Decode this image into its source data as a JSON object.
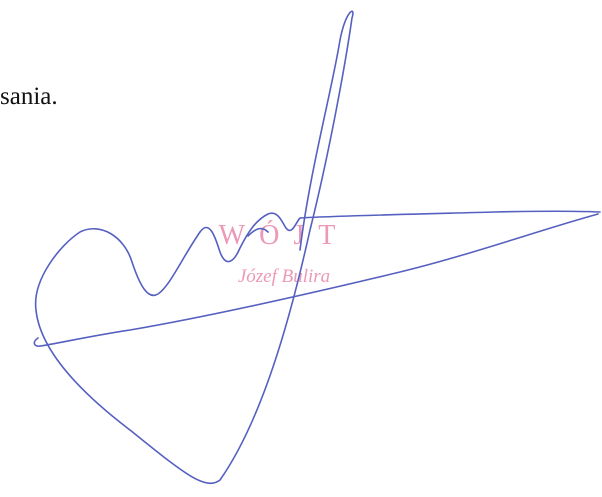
{
  "document": {
    "text_fragment": "sania."
  },
  "stamp": {
    "title": "WÓJT",
    "name": "Józef Bulira",
    "color": "#e98fb0"
  },
  "signature": {
    "ink_color": "#5560c0"
  }
}
